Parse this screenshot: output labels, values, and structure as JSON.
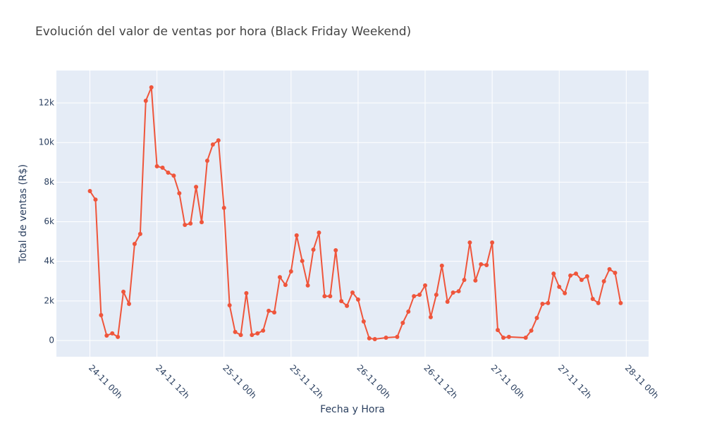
{
  "chart_data": {
    "type": "line",
    "title": "Evolución del valor de ventas por hora (Black Friday Weekend)",
    "x_label": "Fecha y Hora",
    "y_label": "Total de ventas (R$)",
    "x": [
      "24-11 00h",
      "24-11 01h",
      "24-11 02h",
      "24-11 03h",
      "24-11 04h",
      "24-11 05h",
      "24-11 06h",
      "24-11 07h",
      "24-11 08h",
      "24-11 09h",
      "24-11 10h",
      "24-11 11h",
      "24-11 12h",
      "24-11 13h",
      "24-11 14h",
      "24-11 15h",
      "24-11 16h",
      "24-11 17h",
      "24-11 18h",
      "24-11 19h",
      "24-11 20h",
      "24-11 21h",
      "24-11 22h",
      "24-11 23h",
      "25-11 00h",
      "25-11 01h",
      "25-11 02h",
      "25-11 03h",
      "25-11 04h",
      "25-11 05h",
      "25-11 06h",
      "25-11 07h",
      "25-11 08h",
      "25-11 09h",
      "25-11 10h",
      "25-11 11h",
      "25-11 12h",
      "25-11 13h",
      "25-11 14h",
      "25-11 15h",
      "25-11 16h",
      "25-11 17h",
      "25-11 18h",
      "25-11 19h",
      "25-11 20h",
      "25-11 21h",
      "25-11 22h",
      "25-11 23h",
      "26-11 00h",
      "26-11 01h",
      "26-11 02h",
      "26-11 03h",
      "26-11 05h",
      "26-11 07h",
      "26-11 08h",
      "26-11 09h",
      "26-11 10h",
      "26-11 11h",
      "26-11 12h",
      "26-11 13h",
      "26-11 14h",
      "26-11 15h",
      "26-11 16h",
      "26-11 17h",
      "26-11 18h",
      "26-11 19h",
      "26-11 20h",
      "26-11 21h",
      "26-11 22h",
      "26-11 23h",
      "27-11 00h",
      "27-11 01h",
      "27-11 02h",
      "27-11 03h",
      "27-11 06h",
      "27-11 07h",
      "27-11 08h",
      "27-11 09h",
      "27-11 10h",
      "27-11 11h",
      "27-11 12h",
      "27-11 13h",
      "27-11 14h",
      "27-11 15h",
      "27-11 16h",
      "27-11 17h",
      "27-11 18h",
      "27-11 19h",
      "27-11 20h",
      "27-11 21h",
      "27-11 22h",
      "27-11 23h"
    ],
    "series": [
      {
        "color": "#EF553B",
        "values": [
          7550,
          7120,
          1280,
          250,
          360,
          180,
          2460,
          1850,
          4880,
          5380,
          12110,
          12790,
          8800,
          8730,
          8480,
          8330,
          7440,
          5840,
          5910,
          7760,
          5980,
          9080,
          9900,
          10110,
          6700,
          1780,
          430,
          280,
          2390,
          280,
          360,
          500,
          1500,
          1420,
          3200,
          2810,
          3490,
          5310,
          4020,
          2780,
          4590,
          5450,
          2240,
          2240,
          4560,
          1990,
          1750,
          2420,
          2070,
          960,
          110,
          70,
          140,
          180,
          890,
          1460,
          2240,
          2310,
          2780,
          1180,
          2310,
          3780,
          1960,
          2420,
          2490,
          3060,
          4950,
          3030,
          3850,
          3810,
          4950,
          530,
          140,
          180,
          140,
          500,
          1140,
          1850,
          1890,
          3380,
          2710,
          2390,
          3280,
          3380,
          3060,
          3240,
          2100,
          1890,
          2990,
          3600,
          3420,
          1890
        ]
      }
    ],
    "xlim": [
      "23-11 18h",
      "28-11 04h"
    ],
    "xticks": [
      "24-11 00h",
      "24-11 12h",
      "25-11 00h",
      "25-11 12h",
      "26-11 00h",
      "26-11 12h",
      "27-11 00h",
      "27-11 12h",
      "28-11 00h"
    ],
    "ylim": [
      -820,
      13640
    ],
    "yticks": [
      0,
      {
        "value": 2000,
        "label": "2k"
      },
      {
        "value": 4000,
        "label": "4k"
      },
      {
        "value": 6000,
        "label": "6k"
      },
      {
        "value": 8000,
        "label": "8k"
      },
      {
        "value": 10000,
        "label": "10k"
      },
      {
        "value": 12000,
        "label": "12k"
      }
    ],
    "grid": true
  }
}
